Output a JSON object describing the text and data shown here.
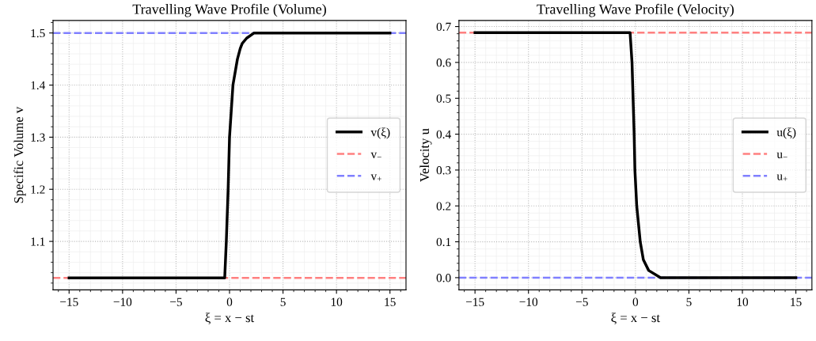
{
  "chart_data": [
    {
      "type": "line",
      "title": "Travelling Wave Profile (Volume)",
      "xlabel": "ξ = x − st",
      "ylabel": "Specific Volume v",
      "series": [
        {
          "name": "v(ξ)",
          "color": "#000000",
          "x": [
            -15,
            -0.45,
            -0.3,
            -0.13,
            0,
            0.32,
            0.74,
            1.0,
            1.19,
            1.6,
            2.3,
            15
          ],
          "values": [
            1.03,
            1.03,
            1.1,
            1.2,
            1.3,
            1.4,
            1.45,
            1.47,
            1.48,
            1.49,
            1.5,
            1.5
          ]
        }
      ],
      "ref_lines": [
        {
          "axis": "y",
          "value": 1.03,
          "label": "v$_{−}$",
          "color": "#ff8080",
          "line_style": "dashed"
        },
        {
          "axis": "y",
          "value": 1.5,
          "label": "v$_{+}$",
          "color": "#8080ff",
          "line_style": "dashed"
        }
      ],
      "xlim": [
        -16.5,
        16.5
      ],
      "ylim": [
        1.007,
        1.524
      ],
      "xticks": [
        {
          "value": -15,
          "label": "−15"
        },
        {
          "value": -10,
          "label": "−10"
        },
        {
          "value": -5,
          "label": "−5"
        },
        0,
        5,
        10,
        15
      ],
      "yticks": [
        1.1,
        1.2,
        1.3,
        1.4,
        1.5
      ],
      "grid": true,
      "legend": "right",
      "marker": "none",
      "line_style": "solid"
    },
    {
      "type": "line",
      "title": "Travelling Wave Profile (Velocity)",
      "xlabel": "ξ = x − st",
      "ylabel": "Velocity u",
      "series": [
        {
          "name": "u(ξ)",
          "color": "#000000",
          "x": [
            -15,
            -0.5,
            -0.32,
            -0.12,
            -0.05,
            0.12,
            0.45,
            0.74,
            1.24,
            2.35,
            15
          ],
          "values": [
            0.683,
            0.683,
            0.6,
            0.4,
            0.3,
            0.2,
            0.1,
            0.05,
            0.02,
            0,
            0
          ]
        }
      ],
      "ref_lines": [
        {
          "axis": "y",
          "value": 0.683,
          "label": "u$_{−}$",
          "color": "#ff8080",
          "line_style": "dashed"
        },
        {
          "axis": "y",
          "value": 0,
          "label": "u$_{+}$",
          "color": "#8080ff",
          "line_style": "dashed"
        }
      ],
      "xlim": [
        -16.5,
        16.5
      ],
      "ylim": [
        -0.034,
        0.717
      ],
      "xticks": [
        {
          "value": -15,
          "label": "−15"
        },
        {
          "value": -10,
          "label": "−10"
        },
        {
          "value": -5,
          "label": "−5"
        },
        0,
        5,
        10,
        15
      ],
      "yticks": [
        {
          "value": 0,
          "label": "0.0"
        },
        0.1,
        0.2,
        0.3,
        0.4,
        0.5,
        0.6,
        0.7
      ],
      "grid": true,
      "legend": "right",
      "marker": "none",
      "line_style": "solid"
    }
  ]
}
